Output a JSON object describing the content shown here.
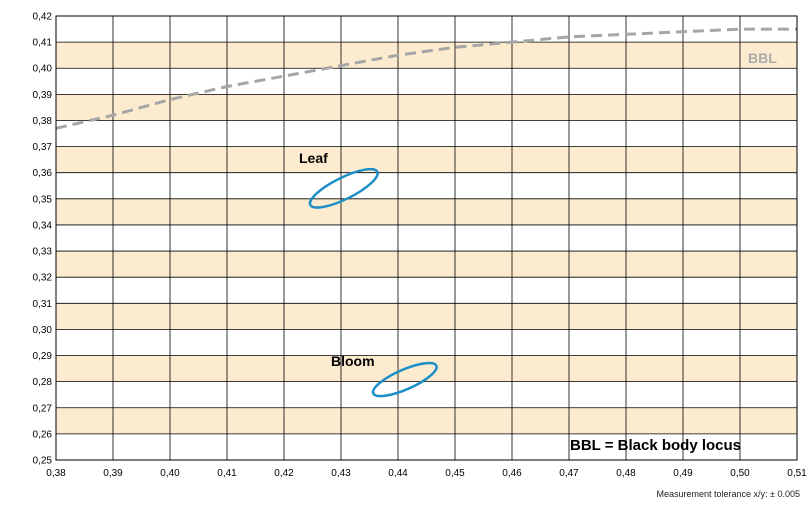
{
  "chart_data": {
    "type": "scatter",
    "title": "",
    "xlabel": "",
    "ylabel": "",
    "xlim": [
      0.38,
      0.51
    ],
    "ylim": [
      0.25,
      0.42
    ],
    "xstep": 0.01,
    "ystep": 0.01,
    "grid": true,
    "band_color": "#fdebd0",
    "x_ticks": [
      "0,38",
      "0,39",
      "0,40",
      "0,41",
      "0,42",
      "0,43",
      "0,44",
      "0,45",
      "0,46",
      "0,47",
      "0,48",
      "0,49",
      "0,50",
      "0,51"
    ],
    "y_ticks": [
      "0,25",
      "0,26",
      "0,27",
      "0,28",
      "0,29",
      "0,30",
      "0,31",
      "0,32",
      "0,33",
      "0,34",
      "0,35",
      "0,36",
      "0,37",
      "0,38",
      "0,39",
      "0,40",
      "0,41",
      "0,42"
    ],
    "series": [
      {
        "name": "BBL",
        "kind": "dashed-line",
        "color": "#a6a6a6",
        "points": [
          [
            0.38,
            0.377
          ],
          [
            0.39,
            0.382
          ],
          [
            0.4,
            0.388
          ],
          [
            0.41,
            0.393
          ],
          [
            0.42,
            0.397
          ],
          [
            0.43,
            0.401
          ],
          [
            0.44,
            0.405
          ],
          [
            0.45,
            0.408
          ],
          [
            0.46,
            0.41
          ],
          [
            0.47,
            0.412
          ],
          [
            0.48,
            0.413
          ],
          [
            0.49,
            0.414
          ],
          [
            0.5,
            0.415
          ],
          [
            0.51,
            0.415
          ]
        ]
      },
      {
        "name": "Leaf",
        "kind": "ellipse",
        "color": "#1b8fc6",
        "center": [
          0.4305,
          0.354
        ],
        "x_extent": [
          0.4245,
          0.4365
        ],
        "y_extent": [
          0.3475,
          0.3605
        ]
      },
      {
        "name": "Bloom",
        "kind": "ellipse",
        "color": "#1b8fc6",
        "center": [
          0.4412,
          0.2808
        ],
        "x_extent": [
          0.4355,
          0.4468
        ],
        "y_extent": [
          0.2755,
          0.2863
        ]
      }
    ],
    "annotations": {
      "leaf": "Leaf",
      "bloom": "Bloom",
      "bbl_label": "BBL",
      "legend_note": "BBL = Black body locus"
    },
    "footnote": "Measurement tolerance x/y: ± 0.005"
  }
}
